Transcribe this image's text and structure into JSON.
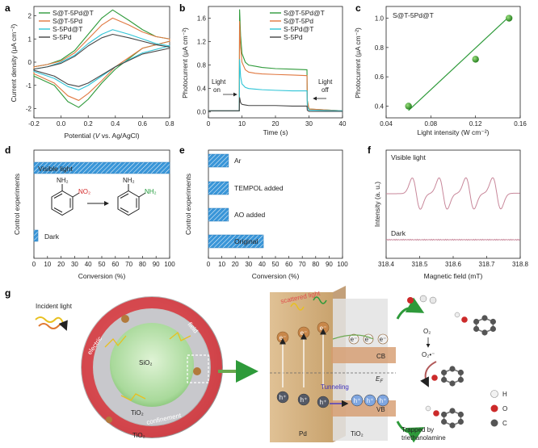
{
  "panels": {
    "a": {
      "label": "a",
      "xlabel_pre": "Potential (",
      "xlabel_ital": "V",
      "xlabel_post": " vs. Ag/AgCl)",
      "ylabel": "Current density (μA cm⁻²)",
      "xticks": [
        "-0.2",
        "0.0",
        "0.2",
        "0.4",
        "0.6",
        "0.8"
      ],
      "yticks": [
        "-2",
        "-1",
        "0",
        "1",
        "2"
      ]
    },
    "b": {
      "label": "b",
      "xlabel": "Time (s)",
      "ylabel": "Photocurrent (μA cm⁻²)",
      "xticks": [
        "0",
        "10",
        "20",
        "30",
        "40"
      ],
      "yticks": [
        "0.0",
        "0.4",
        "0.8",
        "1.2",
        "1.6"
      ],
      "light_on": [
        "Light",
        "on"
      ],
      "light_off": [
        "Light",
        "off"
      ]
    },
    "c": {
      "label": "c",
      "title": "S@T-5Pd@T",
      "xlabel": "Light intensity (W cm⁻²)",
      "ylabel": "Photocurrent (μA cm⁻²)",
      "xticks": [
        "0.04",
        "0.08",
        "0.12",
        "0.16"
      ],
      "yticks": [
        "0.4",
        "0.6",
        "0.8",
        "1.0"
      ]
    },
    "d": {
      "label": "d",
      "xlabel": "Conversion (%)",
      "ylabel": "Control experiments",
      "xticks": [
        "0",
        "10",
        "20",
        "30",
        "40",
        "50",
        "60",
        "70",
        "80",
        "90",
        "100"
      ],
      "bar_labels": [
        "Visible light",
        "Dark"
      ]
    },
    "e": {
      "label": "e",
      "xlabel": "Conversion (%)",
      "ylabel": "Control experiments",
      "xticks": [
        "0",
        "10",
        "20",
        "30",
        "40",
        "50",
        "60",
        "70",
        "80",
        "90",
        "100"
      ],
      "bar_labels": [
        "Ar",
        "TEMPOL added",
        "AO added",
        "Original"
      ]
    },
    "f": {
      "label": "f",
      "xlabel": "Magnetic field (mT)",
      "ylabel": "Intensity (a. u.)",
      "xticks": [
        "318.4",
        "318.5",
        "318.6",
        "318.7",
        "318.8"
      ],
      "trace_labels": [
        "Visible light",
        "Dark"
      ]
    },
    "g": {
      "label": "g"
    }
  },
  "legend_ab": [
    "S@T-5Pd@T",
    "S@T-5Pd",
    "S-5Pd@T",
    "S-5Pd"
  ],
  "series_colors": [
    "#2e9a3a",
    "#e07840",
    "#2ec4d6",
    "#444444"
  ],
  "bar_color": "#3a96d8",
  "chemistry": {
    "reactant_amine": "NH₂",
    "reactant_nitro": "NO₂",
    "product_amine_1": "NH₂",
    "product_amine_2": "NH₂"
  },
  "schematic": {
    "incident_light": "Incident light",
    "core": "SiO₂",
    "shell_inner": "TiO₂",
    "shell_outer": "TiO₂",
    "field_word_1": "electric",
    "field_word_2": "field",
    "field_word_3": "confinement",
    "scattered": "scattered light",
    "electron": "e⁻",
    "hole": "h⁺",
    "cb": "CB",
    "vb": "VB",
    "ef": "E",
    "ef_sub": "F",
    "tunneling": "Tunneling",
    "pd": "Pd",
    "tio2": "TiO₂",
    "o2": "O₂",
    "o2_radical": "O₂•⁻",
    "trapped_1": "Trapped by",
    "trapped_2": "triethanolamine",
    "legend_atoms": [
      "H",
      "O",
      "C"
    ]
  },
  "chart_data": [
    {
      "type": "line",
      "panel": "a",
      "title": "",
      "xlabel": "Potential (V vs. Ag/AgCl)",
      "ylabel": "Current density (μA cm⁻²)",
      "xlim": [
        -0.2,
        0.8
      ],
      "ylim": [
        -2.4,
        2.4
      ],
      "series": [
        {
          "name": "S@T-5Pd@T",
          "color": "#2e9a3a",
          "x": [
            -0.2,
            -0.1,
            0.0,
            0.1,
            0.2,
            0.3,
            0.38,
            0.5,
            0.6,
            0.7,
            0.8
          ],
          "y": [
            -0.2,
            -0.1,
            0.1,
            0.5,
            1.2,
            1.9,
            2.25,
            1.8,
            1.4,
            1.1,
            1.0
          ],
          "x_ret": [
            0.8,
            0.6,
            0.4,
            0.3,
            0.2,
            0.13,
            0.05,
            -0.05,
            -0.2
          ],
          "y_ret": [
            0.9,
            0.6,
            -0.3,
            -0.9,
            -1.6,
            -1.95,
            -1.7,
            -1.0,
            -0.6
          ]
        },
        {
          "name": "S@T-5Pd",
          "color": "#e07840",
          "x": [
            -0.2,
            -0.1,
            0.0,
            0.1,
            0.2,
            0.3,
            0.38,
            0.5,
            0.6,
            0.7,
            0.8
          ],
          "y": [
            -0.2,
            -0.1,
            0.05,
            0.4,
            1.0,
            1.6,
            1.9,
            1.6,
            1.3,
            1.1,
            1.0
          ],
          "x_ret": [
            0.8,
            0.6,
            0.4,
            0.3,
            0.2,
            0.13,
            0.05,
            -0.05,
            -0.2
          ],
          "y_ret": [
            0.9,
            0.6,
            -0.2,
            -0.8,
            -1.35,
            -1.65,
            -1.45,
            -0.9,
            -0.5
          ]
        },
        {
          "name": "S-5Pd@T",
          "color": "#2ec4d6",
          "x": [
            -0.2,
            -0.1,
            0.0,
            0.1,
            0.2,
            0.3,
            0.38,
            0.5,
            0.6,
            0.7,
            0.8
          ],
          "y": [
            -0.3,
            -0.2,
            0.0,
            0.3,
            0.8,
            1.2,
            1.4,
            1.2,
            1.0,
            0.8,
            0.7
          ],
          "x_ret": [
            0.8,
            0.6,
            0.4,
            0.3,
            0.2,
            0.13,
            0.05,
            -0.05,
            -0.2
          ],
          "y_ret": [
            0.7,
            0.4,
            -0.2,
            -0.6,
            -1.0,
            -1.2,
            -1.05,
            -0.7,
            -0.4
          ]
        },
        {
          "name": "S-5Pd",
          "color": "#444444",
          "x": [
            -0.2,
            -0.1,
            0.0,
            0.1,
            0.2,
            0.3,
            0.38,
            0.5,
            0.6,
            0.7,
            0.8
          ],
          "y": [
            -0.3,
            -0.2,
            -0.05,
            0.25,
            0.7,
            1.05,
            1.2,
            1.05,
            0.9,
            0.75,
            0.65
          ],
          "x_ret": [
            0.8,
            0.6,
            0.4,
            0.3,
            0.2,
            0.13,
            0.05,
            -0.05,
            -0.2
          ],
          "y_ret": [
            0.6,
            0.35,
            -0.2,
            -0.55,
            -0.9,
            -1.05,
            -0.95,
            -0.6,
            -0.35
          ]
        }
      ]
    },
    {
      "type": "line",
      "panel": "b",
      "xlabel": "Time (s)",
      "ylabel": "Photocurrent (μA cm⁻²)",
      "xlim": [
        0,
        40
      ],
      "ylim": [
        -0.1,
        1.8
      ],
      "series": [
        {
          "name": "S@T-5Pd@T",
          "color": "#2e9a3a",
          "x": [
            0,
            9.2,
            9.3,
            9.6,
            10,
            11,
            12,
            14,
            16,
            20,
            25,
            29.4,
            29.5,
            30,
            40
          ],
          "y": [
            0.02,
            0.02,
            1.75,
            1.3,
            1.0,
            0.85,
            0.8,
            0.78,
            0.76,
            0.74,
            0.73,
            0.72,
            0.2,
            0.05,
            0.02
          ]
        },
        {
          "name": "S@T-5Pd",
          "color": "#e07840",
          "x": [
            0,
            9.2,
            9.3,
            9.6,
            10,
            11,
            12,
            14,
            16,
            20,
            25,
            29.4,
            29.5,
            30,
            40
          ],
          "y": [
            0.02,
            0.02,
            1.55,
            1.1,
            0.85,
            0.72,
            0.68,
            0.66,
            0.65,
            0.64,
            0.63,
            0.62,
            0.18,
            0.05,
            0.02
          ]
        },
        {
          "name": "S-5Pd@T",
          "color": "#2ec4d6",
          "x": [
            0,
            9.2,
            9.3,
            9.6,
            10,
            11,
            12,
            14,
            16,
            20,
            25,
            29.4,
            29.5,
            30,
            40
          ],
          "y": [
            0.02,
            0.02,
            0.9,
            0.6,
            0.48,
            0.42,
            0.4,
            0.39,
            0.38,
            0.37,
            0.36,
            0.36,
            0.1,
            0.03,
            0.02
          ]
        },
        {
          "name": "S-5Pd",
          "color": "#444444",
          "x": [
            0,
            9.2,
            9.3,
            9.6,
            10,
            11,
            12,
            14,
            16,
            20,
            25,
            29.4,
            29.5,
            30,
            40
          ],
          "y": [
            0.02,
            0.02,
            0.25,
            0.16,
            0.13,
            0.12,
            0.11,
            0.11,
            0.11,
            0.11,
            0.1,
            0.1,
            0.03,
            0.01,
            0.01
          ]
        }
      ]
    },
    {
      "type": "scatter",
      "panel": "c",
      "title": "S@T-5Pd@T",
      "xlabel": "Light intensity (W cm⁻²)",
      "ylabel": "Photocurrent (μA cm⁻²)",
      "xlim": [
        0.04,
        0.16
      ],
      "ylim": [
        0.32,
        1.08
      ],
      "x": [
        0.06,
        0.12,
        0.15
      ],
      "y": [
        0.4,
        0.72,
        1.0
      ],
      "fit": {
        "x": [
          0.06,
          0.15
        ],
        "y": [
          0.37,
          1.01
        ]
      },
      "color": "#2e9a3a"
    },
    {
      "type": "bar",
      "panel": "d",
      "orientation": "horizontal",
      "xlabel": "Conversion (%)",
      "ylabel": "Control experiments",
      "xlim": [
        0,
        100
      ],
      "categories": [
        "Visible light",
        "Dark"
      ],
      "values": [
        100,
        3
      ]
    },
    {
      "type": "bar",
      "panel": "e",
      "orientation": "horizontal",
      "xlabel": "Conversion (%)",
      "ylabel": "Control experiments",
      "xlim": [
        0,
        100
      ],
      "categories": [
        "Ar",
        "TEMPOL added",
        "AO added",
        "Original"
      ],
      "values": [
        15,
        15,
        15,
        41
      ]
    },
    {
      "type": "line",
      "panel": "f",
      "xlabel": "Magnetic field (mT)",
      "ylabel": "Intensity (a. u.)",
      "xlim": [
        318.4,
        318.8
      ],
      "series": [
        {
          "name": "Visible light",
          "color": "#c8879a",
          "peaks": [
            318.49,
            318.57,
            318.65,
            318.73
          ],
          "baseline": 0.0,
          "amplitude": 1.0
        },
        {
          "name": "Dark",
          "color": "#c8879a",
          "baseline": -1.55,
          "amplitude": 0.02
        }
      ]
    }
  ]
}
